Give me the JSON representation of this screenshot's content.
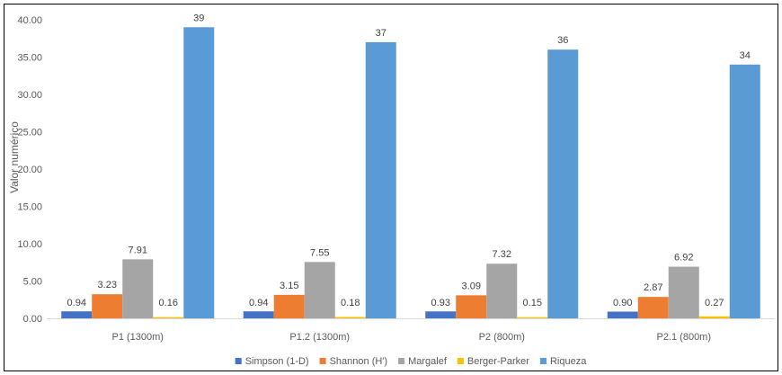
{
  "chart_data": {
    "type": "bar",
    "title": "",
    "xlabel": "",
    "ylabel": "Valor numérico",
    "ylim": [
      0,
      40
    ],
    "yticks": [
      "0.00",
      "5.00",
      "10.00",
      "15.00",
      "20.00",
      "25.00",
      "30.00",
      "35.00",
      "40.00"
    ],
    "categories": [
      "P1 (1300m)",
      "P1.2 (1300m)",
      "P2 (800m)",
      "P2.1 (800m)"
    ],
    "series": [
      {
        "name": "Simpson (1-D)",
        "color": "#4472C4",
        "values": [
          0.94,
          0.94,
          0.93,
          0.9
        ],
        "labels": [
          "0.94",
          "0.94",
          "0.93",
          "0.90"
        ]
      },
      {
        "name": "Shannon (H')",
        "color": "#ED7D31",
        "values": [
          3.23,
          3.15,
          3.09,
          2.87
        ],
        "labels": [
          "3.23",
          "3.15",
          "3.09",
          "2.87"
        ]
      },
      {
        "name": "Margalef",
        "color": "#A5A5A5",
        "values": [
          7.91,
          7.55,
          7.32,
          6.92
        ],
        "labels": [
          "7.91",
          "7.55",
          "7.32",
          "6.92"
        ]
      },
      {
        "name": "Berger-Parker",
        "color": "#FFC000",
        "values": [
          0.16,
          0.18,
          0.15,
          0.27
        ],
        "labels": [
          "0.16",
          "0.18",
          "0.15",
          "0.27"
        ]
      },
      {
        "name": "Riqueza",
        "color": "#5B9BD5",
        "values": [
          39,
          37,
          36,
          34
        ],
        "labels": [
          "39",
          "37",
          "36",
          "34"
        ]
      }
    ],
    "grid": false,
    "legend": "bottom"
  }
}
